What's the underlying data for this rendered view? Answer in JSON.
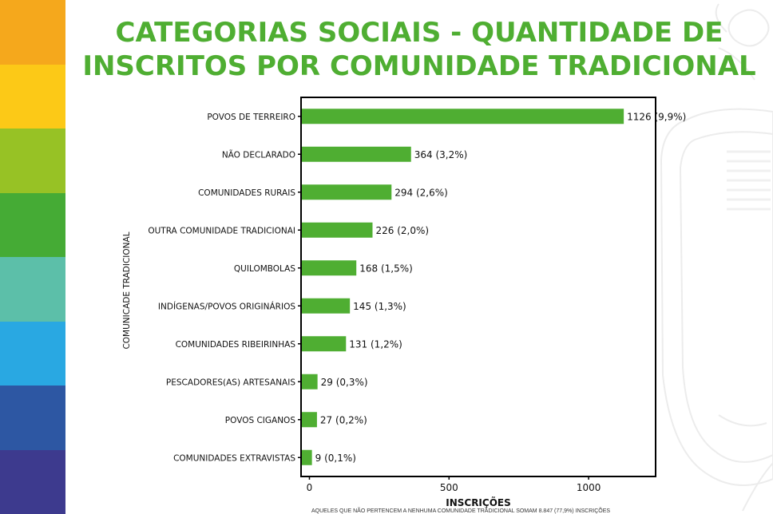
{
  "title": {
    "line1": "CATEGORIAS SOCIAIS - QUANTIDADE DE",
    "line2": "INSCRITOS POR COMUNIDADE TRADICIONAL"
  },
  "colors": {
    "title": "#4fae32",
    "bar": "#4fae32",
    "stripes": [
      "#f5a81c",
      "#fcc917",
      "#97c225",
      "#45ab35",
      "#5cbfa9",
      "#29a8e2",
      "#2d57a3",
      "#3d3a8e"
    ]
  },
  "chart_data": {
    "type": "bar",
    "orientation": "horizontal",
    "xlabel": "INSCRIÇÕES",
    "ylabel": "COMUNICADE TRADICIONAL",
    "xlim": [
      -30,
      1240
    ],
    "xticks": [
      "0",
      "500",
      "1000"
    ],
    "xtick_values": [
      0,
      500,
      1000
    ],
    "grid": false,
    "categories": [
      "POVOS DE TERREIRO",
      "NÃO DECLARADO",
      "COMUNIDADES RURAIS",
      "OUTRA COMUNIDADE TRADICIONAI",
      "QUILOMBOLAS",
      "INDÍGENAS/POVOS ORIGINÁRIOS",
      "COMUNIDADES RIBEIRINHAS",
      "PESCADORES(AS) ARTESANAIS",
      "POVOS CIGANOS",
      "COMUNIDADES EXTRAVISTAS"
    ],
    "values": [
      1126,
      364,
      294,
      226,
      168,
      145,
      131,
      29,
      27,
      9
    ],
    "data_labels": [
      "1126 (9,9%)",
      "364 (3,2%)",
      "294 (2,6%)",
      "226 (2,0%)",
      "168 (1,5%)",
      "145 (1,3%)",
      "131 (1,2%)",
      "29 (0,3%)",
      "27 (0,2%)",
      "9 (0,1%)"
    ]
  },
  "footnote": "AQUELES QUE NÃO PERTENCEM A NENHUMA COMUNIDADE TRADICIONAL SOMAM 8.847 (77,9%) INSCRIÇÕES"
}
